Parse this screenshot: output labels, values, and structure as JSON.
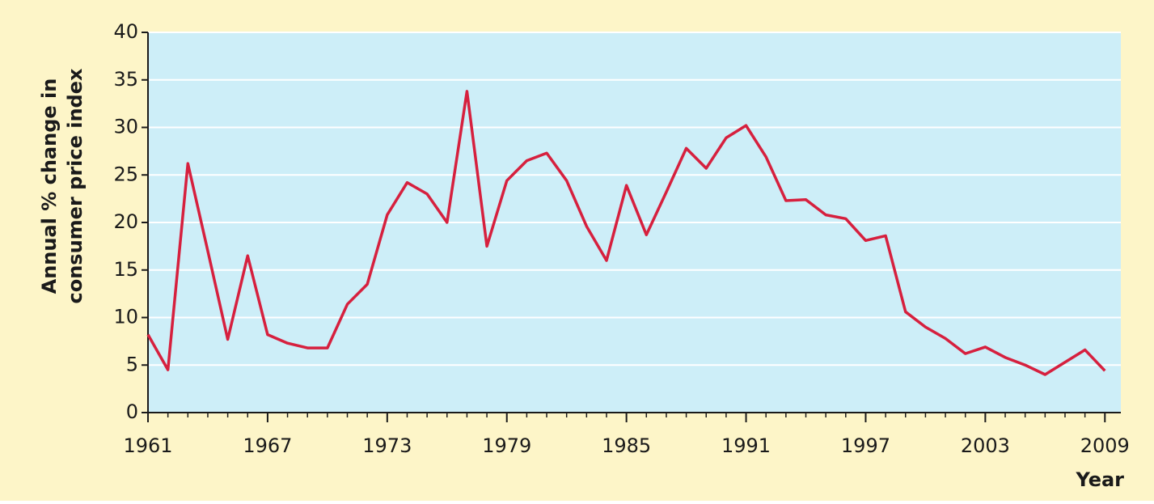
{
  "chart_data": {
    "type": "line",
    "ylabel": [
      "Annual % change in",
      "consumer price index"
    ],
    "xlabel": "Year",
    "x": [
      1961,
      1962,
      1963,
      1964,
      1965,
      1966,
      1967,
      1968,
      1969,
      1970,
      1971,
      1972,
      1973,
      1974,
      1975,
      1976,
      1977,
      1978,
      1979,
      1980,
      1981,
      1982,
      1983,
      1984,
      1985,
      1986,
      1987,
      1988,
      1989,
      1990,
      1991,
      1992,
      1993,
      1994,
      1995,
      1996,
      1997,
      1998,
      1999,
      2000,
      2001,
      2002,
      2003,
      2004,
      2005,
      2006,
      2007,
      2008,
      2009
    ],
    "series": [
      {
        "color": "#d6203e",
        "values": [
          8.2,
          4.5,
          26.2,
          17,
          7.7,
          16.5,
          8.2,
          7.3,
          6.8,
          6.8,
          11.4,
          13.5,
          20.8,
          24.2,
          23,
          20,
          33.8,
          17.5,
          24.4,
          26.5,
          27.3,
          24.4,
          19.6,
          16,
          23.9,
          18.7,
          23.2,
          27.8,
          25.7,
          28.9,
          30.2,
          26.9,
          22.3,
          22.4,
          20.8,
          20.4,
          18.1,
          18.6,
          10.6,
          9,
          7.8,
          6.2,
          6.9,
          5.8,
          5,
          4,
          5.3,
          6.6,
          4.4
        ]
      }
    ],
    "xlim": [
      1961,
      2009.8
    ],
    "xticks": [
      1961,
      1967,
      1973,
      1979,
      1985,
      1991,
      1997,
      2003,
      2009
    ],
    "ylim": [
      0,
      40
    ],
    "yticks": [
      0,
      5,
      10,
      15,
      20,
      25,
      30,
      35,
      40
    ],
    "grid": true,
    "plot_background": "#cdeef8",
    "background": "#fdf5c8"
  }
}
